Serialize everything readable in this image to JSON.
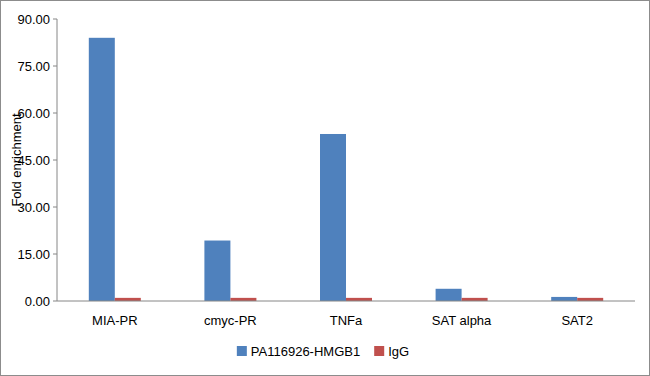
{
  "chart_data": {
    "type": "bar",
    "y_label": "Fold enrichment",
    "categories": [
      "MIA-PR",
      "cmyc-PR",
      "TNFa",
      "SAT alpha",
      "SAT2"
    ],
    "series": [
      {
        "name": "PA116926-HMGB1",
        "color": "#4f81bd",
        "values": [
          84.0,
          19.3,
          53.3,
          3.9,
          1.3
        ]
      },
      {
        "name": "IgG",
        "color": "#c0504d",
        "values": [
          1.0,
          1.0,
          1.0,
          1.0,
          1.0
        ]
      }
    ],
    "ylim": [
      0,
      90
    ],
    "yticks": [
      {
        "value": 0,
        "label": "0.00"
      },
      {
        "value": 15,
        "label": "15.00"
      },
      {
        "value": 30,
        "label": "30.00"
      },
      {
        "value": 45,
        "label": "45.00"
      },
      {
        "value": 60,
        "label": "60.00"
      },
      {
        "value": 75,
        "label": "75.00"
      },
      {
        "value": 90,
        "label": "90.00"
      }
    ],
    "grid": false,
    "legend": "bottom"
  }
}
